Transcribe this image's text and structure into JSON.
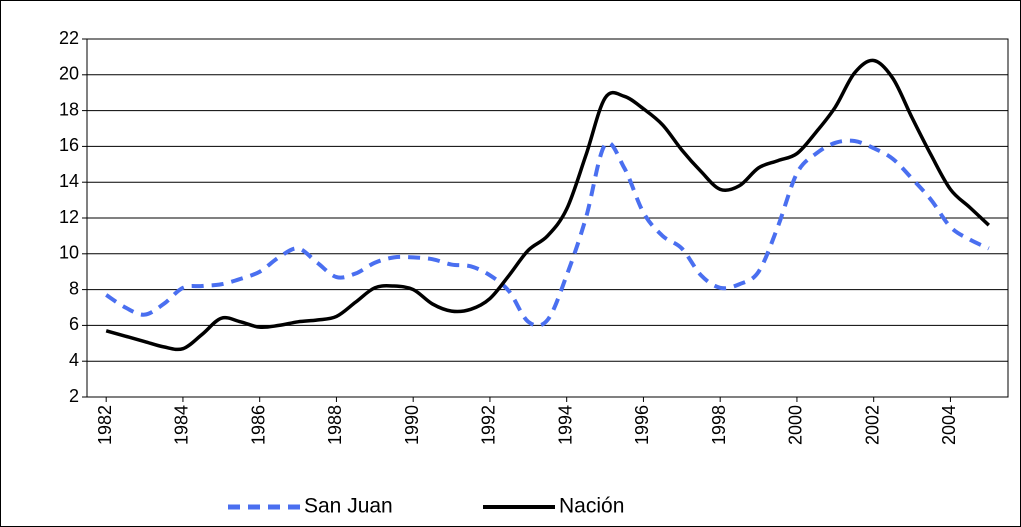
{
  "chart_data": {
    "type": "line",
    "x": [
      1982,
      1982.5,
      1983,
      1983.5,
      1984,
      1984.5,
      1985,
      1985.5,
      1986,
      1986.5,
      1987,
      1987.5,
      1988,
      1988.5,
      1989,
      1989.5,
      1990,
      1990.5,
      1991,
      1991.5,
      1992,
      1992.5,
      1993,
      1993.5,
      1994,
      1994.5,
      1995,
      1995.5,
      1996,
      1996.5,
      1997,
      1997.5,
      1998,
      1998.5,
      1999,
      1999.5,
      2000,
      2000.5,
      2001,
      2001.5,
      2002,
      2002.5,
      2003,
      2003.5,
      2004,
      2004.5,
      2005
    ],
    "series": [
      {
        "name": "San Juan",
        "color": "#4a6ff0",
        "dash": true,
        "values": [
          7.7,
          7.0,
          6.6,
          7.2,
          8.1,
          8.2,
          8.3,
          8.6,
          9.0,
          9.8,
          10.3,
          9.5,
          8.7,
          8.9,
          9.5,
          9.8,
          9.8,
          9.7,
          9.4,
          9.3,
          8.8,
          7.9,
          6.2,
          6.3,
          8.8,
          12.0,
          16.1,
          14.8,
          12.3,
          11.0,
          10.3,
          8.8,
          8.1,
          8.3,
          9.0,
          11.5,
          14.5,
          15.6,
          16.2,
          16.3,
          15.9,
          15.3,
          14.2,
          13.0,
          11.5,
          10.8,
          10.3
        ]
      },
      {
        "name": "Nación",
        "color": "#000000",
        "dash": false,
        "values": [
          5.7,
          5.4,
          5.1,
          4.8,
          4.7,
          5.5,
          6.4,
          6.2,
          5.9,
          6.0,
          6.2,
          6.3,
          6.5,
          7.3,
          8.1,
          8.2,
          8.0,
          7.2,
          6.8,
          6.9,
          7.5,
          8.8,
          10.2,
          11.0,
          12.5,
          15.5,
          18.7,
          18.8,
          18.1,
          17.2,
          15.8,
          14.6,
          13.6,
          13.8,
          14.8,
          15.2,
          15.6,
          16.8,
          18.2,
          20.1,
          20.8,
          19.8,
          17.6,
          15.5,
          13.6,
          12.6,
          11.6
        ]
      }
    ],
    "xlim": [
      1981.5,
      2005.5
    ],
    "xticks": [
      1982,
      1984,
      1986,
      1988,
      1990,
      1992,
      1994,
      1996,
      1998,
      2000,
      2002,
      2004
    ],
    "ylim": [
      2,
      22
    ],
    "yticks": [
      2,
      4,
      6,
      8,
      10,
      12,
      14,
      16,
      18,
      20,
      22
    ],
    "grid": true,
    "legend": "bottom"
  }
}
